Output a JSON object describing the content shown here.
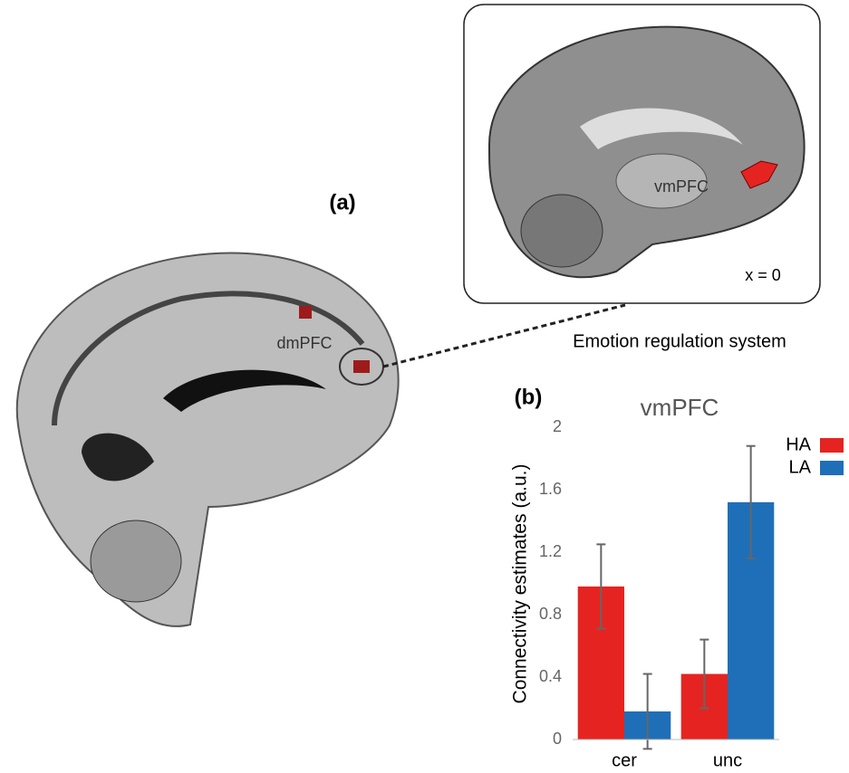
{
  "panel_a": {
    "label": "(a)",
    "region_labels": [
      "dmPFC",
      "vmPFC"
    ],
    "slice": "x = 0",
    "caption": "Emotion regulation system"
  },
  "panel_b": {
    "label": "(b)"
  },
  "chart_data": {
    "type": "bar",
    "title": "vmPFC",
    "y_label": "Connectivity estimates (a.u.)",
    "categories": [
      "cer",
      "unc"
    ],
    "series": [
      {
        "name": "HA",
        "color": "#e52421",
        "values": [
          0.98,
          0.42
        ],
        "errors": [
          0.27,
          0.22
        ]
      },
      {
        "name": "LA",
        "color": "#1f6fb8",
        "values": [
          0.18,
          1.52
        ],
        "errors": [
          0.24,
          0.36
        ]
      }
    ],
    "ylim": [
      0,
      2
    ],
    "yticks": [
      0,
      0.4,
      0.8,
      1.2,
      1.6,
      2
    ],
    "grid": false,
    "legend": "top-right",
    "error_color": "#666666"
  }
}
